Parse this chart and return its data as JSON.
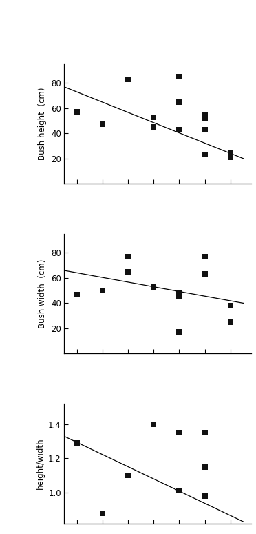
{
  "plot1": {
    "ylabel": "Bush height  (cm)",
    "yticks": [
      20,
      40,
      60,
      80
    ],
    "ylim": [
      0,
      95
    ],
    "scatter_x": [
      1,
      2,
      3,
      4,
      4,
      5,
      5,
      5,
      6,
      6,
      6,
      6,
      7,
      7,
      7
    ],
    "scatter_y": [
      57,
      47,
      83,
      53,
      45,
      85,
      65,
      43,
      55,
      52,
      43,
      23,
      25,
      22,
      21
    ],
    "line_x": [
      0.5,
      7.5
    ],
    "line_y": [
      77,
      20
    ]
  },
  "plot2": {
    "ylabel": "Bush width  (cm)",
    "yticks": [
      20,
      40,
      60,
      80
    ],
    "ylim": [
      0,
      95
    ],
    "scatter_x": [
      1,
      2,
      3,
      3,
      4,
      4,
      5,
      5,
      5,
      5,
      5,
      5,
      6,
      6,
      7,
      7
    ],
    "scatter_y": [
      47,
      50,
      77,
      65,
      53,
      53,
      47,
      47,
      48,
      46,
      45,
      17,
      77,
      63,
      25,
      38
    ],
    "line_x": [
      0.5,
      7.5
    ],
    "line_y": [
      66,
      40
    ]
  },
  "plot3": {
    "ylabel": "height/width",
    "yticks": [
      1.0,
      1.2,
      1.4
    ],
    "ylim": [
      0.82,
      1.52
    ],
    "scatter_x": [
      1,
      2,
      3,
      4,
      5,
      5,
      6,
      6,
      6,
      6
    ],
    "scatter_y": [
      1.29,
      0.88,
      1.1,
      1.4,
      1.01,
      1.35,
      1.35,
      1.15,
      0.98,
      0.98
    ],
    "line_x": [
      0.5,
      7.5
    ],
    "line_y": [
      1.33,
      0.83
    ]
  },
  "xlim": [
    0.5,
    7.8
  ],
  "xticks": [
    1,
    2,
    3,
    4,
    5,
    6,
    7
  ],
  "bg_color": "#ffffff",
  "line_color": "#000000",
  "scatter_color": "#111111",
  "marker_size": 28
}
